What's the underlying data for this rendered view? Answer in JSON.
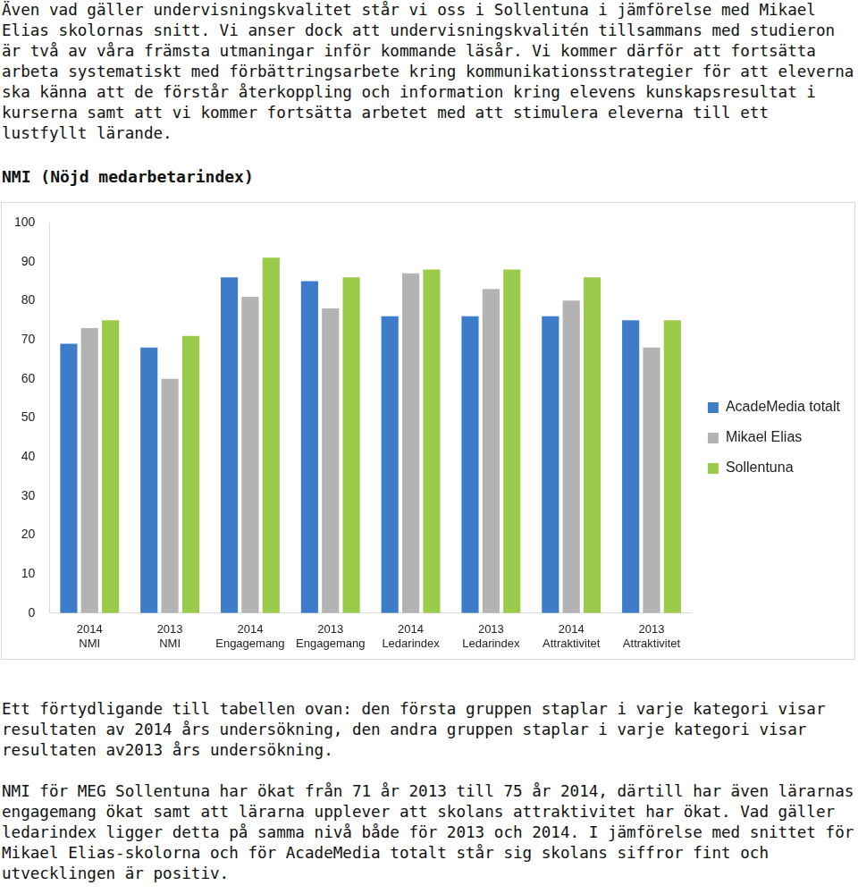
{
  "paragraphs_top": [
    "Även vad gäller undervisningskvalitet står vi oss i Sollentuna i jämförelse med Mikael Elias skolornas snitt. Vi anser dock att undervisningskvalitén tillsammans med studieron är två av våra främsta utmaningar inför kommande läsår. Vi kommer därför att fortsätta arbeta systematiskt med förbättringsarbete kring kommunikationsstrategier för att eleverna ska känna att de förstår återkoppling och information kring elevens kunskapsresultat i kurserna samt att vi kommer fortsätta arbetet med att stimulera eleverna till ett lustfyllt lärande."
  ],
  "chart_data": {
    "type": "bar",
    "title": "NMI (Nöjd medarbetarindex)",
    "categories": [
      [
        "2014",
        "NMI"
      ],
      [
        "2013",
        "NMI"
      ],
      [
        "2014",
        "Engagemang"
      ],
      [
        "2013",
        "Engagemang"
      ],
      [
        "2014",
        "Ledarindex"
      ],
      [
        "2013",
        "Ledarindex"
      ],
      [
        "2014",
        "Attraktivitet"
      ],
      [
        "2013",
        "Attraktivitet"
      ]
    ],
    "series": [
      {
        "name": "AcadeMedia totalt",
        "color": "#3d7cc9",
        "values": [
          69,
          68,
          86,
          85,
          76,
          76,
          76,
          75
        ]
      },
      {
        "name": "Mikael Elias",
        "color": "#b3b3b3",
        "values": [
          73,
          60,
          81,
          78,
          87,
          83,
          80,
          68
        ]
      },
      {
        "name": "Sollentuna",
        "color": "#9bcb4b",
        "values": [
          75,
          71,
          91,
          86,
          88,
          88,
          86,
          75
        ]
      }
    ],
    "ylim": [
      0,
      100
    ],
    "yticks": [
      0,
      10,
      20,
      30,
      40,
      50,
      60,
      70,
      80,
      90,
      100
    ],
    "grid": false,
    "legend": "right"
  },
  "paragraphs_bottom": [
    "Ett förtydligande till tabellen ovan: den första gruppen staplar i varje kategori visar resultaten av 2014 års undersökning, den andra gruppen staplar i varje kategori visar resultaten av2013 års undersökning.",
    "NMI för MEG Sollentuna har ökat från 71 år 2013 till 75 år 2014, därtill har även lärarnas engagemang ökat samt att lärarna upplever att skolans attraktivitet har ökat. Vad gäller ledarindex ligger detta på samma nivå både för 2013 och 2014. I jämförelse med snittet för Mikael Elias-skolorna och för AcadeMedia totalt står sig skolans siffror fint och utvecklingen är positiv."
  ]
}
